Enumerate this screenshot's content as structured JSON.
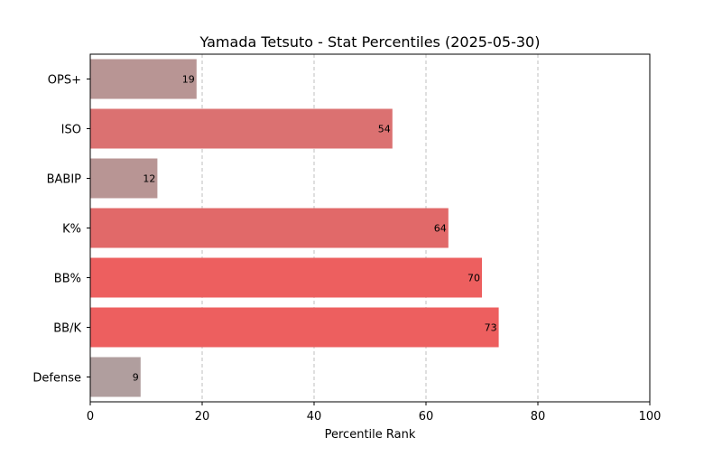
{
  "chart_data": {
    "type": "bar",
    "orientation": "horizontal",
    "title": "Yamada Tetsuto - Stat Percentiles (2025-05-30)",
    "xlabel": "Percentile Rank",
    "ylabel": "",
    "xlim": [
      0,
      100
    ],
    "xticks": [
      0,
      20,
      40,
      60,
      80,
      100
    ],
    "grid": "x-dashed",
    "categories": [
      "OPS+",
      "ISO",
      "BABIP",
      "K%",
      "BB%",
      "BB/K",
      "Defense"
    ],
    "values": [
      19,
      54,
      12,
      64,
      70,
      73,
      9
    ],
    "colors": [
      "#b89594",
      "#db7171",
      "#b89594",
      "#e16969",
      "#ed5f5f",
      "#ed5f5f",
      "#b09e9e"
    ]
  }
}
